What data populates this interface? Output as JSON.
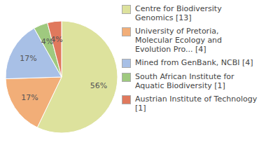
{
  "chart_data": {
    "type": "pie",
    "categories": [
      "Centre for Biodiversity Genomics [13]",
      "University of Pretoria, Molecular Ecology and Evolution Pro... [4]",
      "Mined from GenBank, NCBI [4]",
      "South African Institute for Aquatic Biodiversity [1]",
      "Austrian Institute of Technology [1]"
    ],
    "values": [
      56,
      17,
      17,
      4,
      4
    ],
    "value_labels": [
      "56%",
      "17%",
      "17%",
      "4%",
      "4%"
    ],
    "data_labels": true,
    "legend": "right",
    "colors": [
      "#dde29d",
      "#f2ae78",
      "#a8c0e6",
      "#9fc97f",
      "#e0795d"
    ]
  }
}
